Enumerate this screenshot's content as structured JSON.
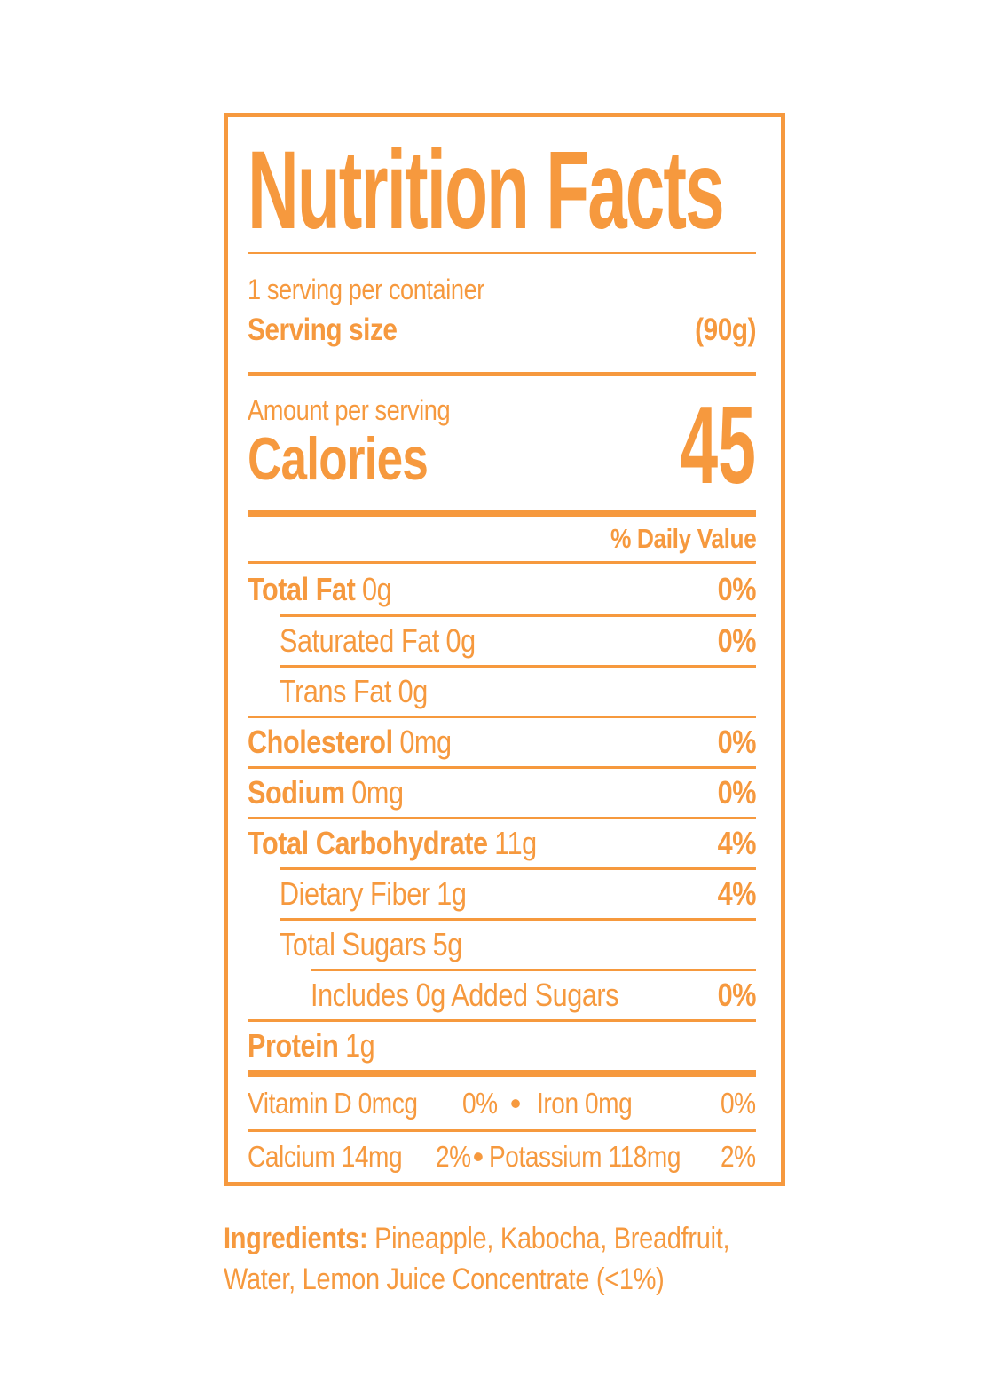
{
  "colors": {
    "accent": "#F6993E",
    "background": "#FFFFFF"
  },
  "label": {
    "title": "Nutrition Facts",
    "servings_per_container": "1 serving per container",
    "serving_size_label": "Serving size",
    "serving_size_value": "(90g)",
    "amount_per_serving": "Amount per serving",
    "calories_label": "Calories",
    "calories_value": "45",
    "daily_value_header": "% Daily Value",
    "rows": [
      {
        "name": "Total Fat",
        "amount": "0g",
        "dv": "0%"
      },
      {
        "name": "Saturated Fat",
        "amount": "0g",
        "dv": "0%"
      },
      {
        "name": "Trans Fat",
        "amount": "0g",
        "dv": ""
      },
      {
        "name": "Cholesterol",
        "amount": "0mg",
        "dv": "0%"
      },
      {
        "name": "Sodium",
        "amount": "0mg",
        "dv": "0%"
      },
      {
        "name": "Total Carbohydrate",
        "amount": "11g",
        "dv": "4%"
      },
      {
        "name": "Dietary Fiber",
        "amount": "1g",
        "dv": "4%"
      },
      {
        "name": "Total Sugars",
        "amount": "5g",
        "dv": ""
      },
      {
        "name": "Includes 0g Added Sugars",
        "amount": "",
        "dv": "0%"
      },
      {
        "name": "Protein",
        "amount": "1g",
        "dv": ""
      }
    ],
    "bullet": "•",
    "micronutrients": [
      {
        "left_name": "Vitamin D 0mcg",
        "left_dv": "0%",
        "right_name": "Iron 0mg",
        "right_dv": "0%"
      },
      {
        "left_name": "Calcium 14mg",
        "left_dv": "2%",
        "right_name": "Potassium 118mg",
        "right_dv": "2%"
      }
    ]
  },
  "ingredients": {
    "label": "Ingredients:",
    "text": " Pineapple, Kabocha, Breadfruit, Water, Lemon Juice Concentrate (<1%)"
  }
}
